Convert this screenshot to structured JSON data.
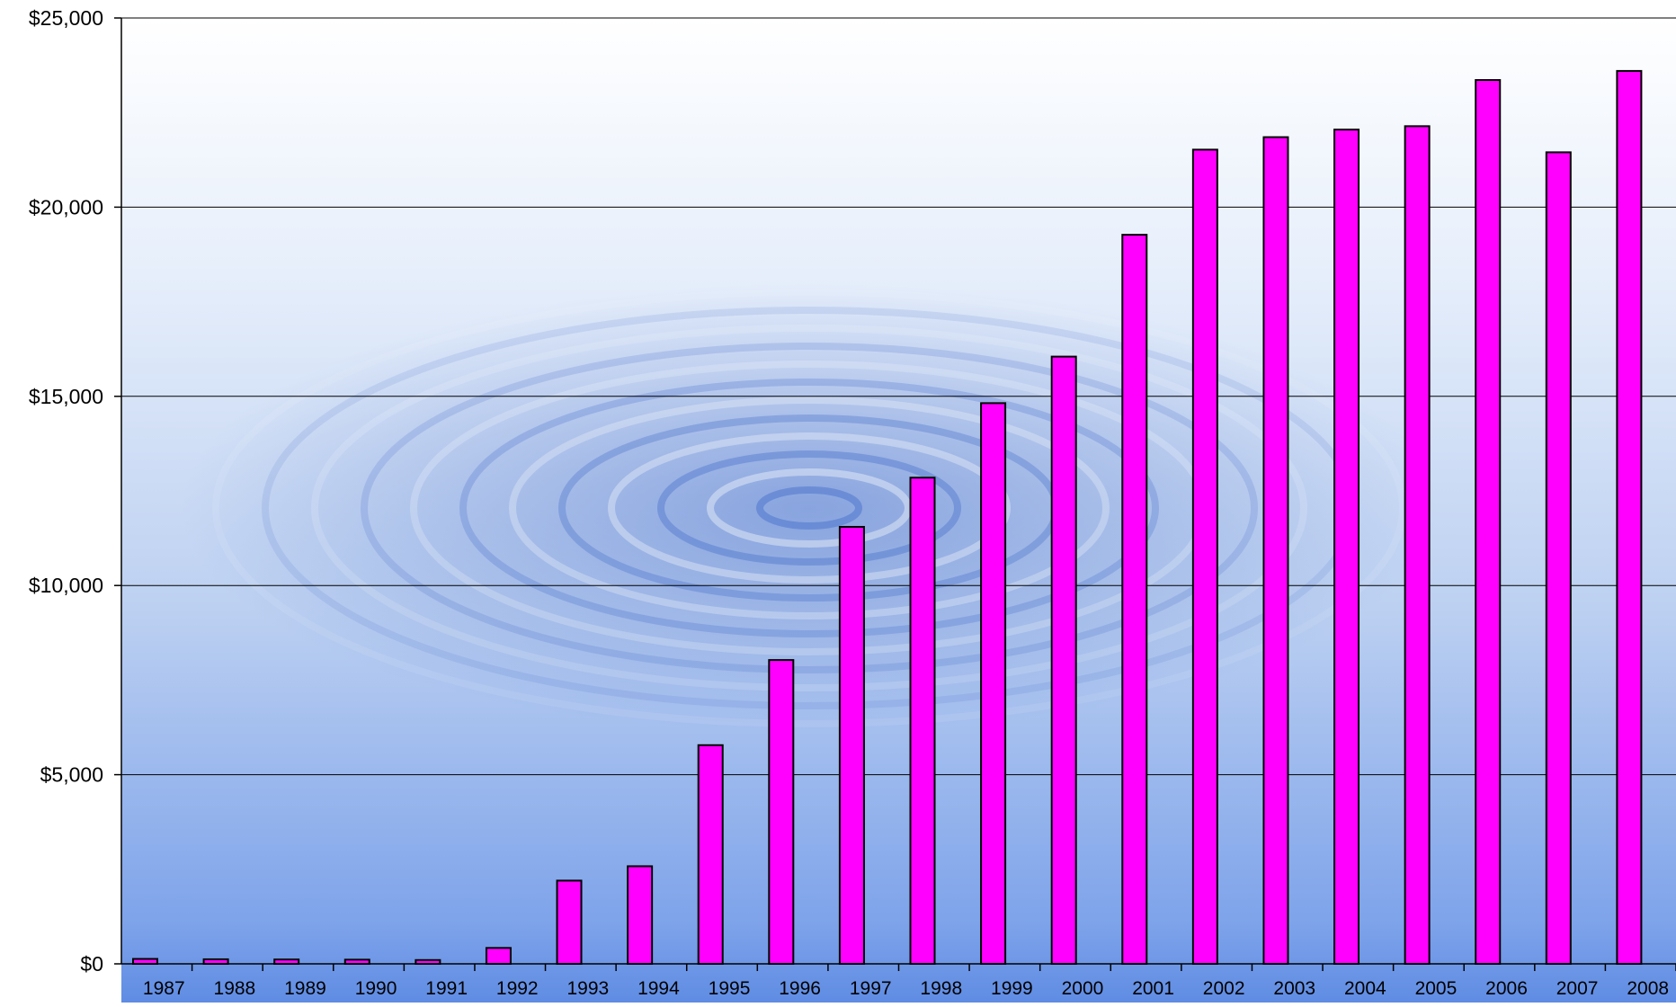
{
  "chart_data": {
    "type": "bar",
    "categories": [
      "1987",
      "1988",
      "1989",
      "1990",
      "1991",
      "1992",
      "1993",
      "1994",
      "1995",
      "1996",
      "1997",
      "1998",
      "1999",
      "2000",
      "2001",
      "2002",
      "2003",
      "2004",
      "2005",
      "2006",
      "2007",
      "2008"
    ],
    "series": [
      {
        "values": [
          130,
          120,
          115,
          110,
          100,
          420,
          2200,
          2580,
          5780,
          8030,
          11550,
          12850,
          14820,
          16050,
          19270,
          21520,
          21850,
          22050,
          22140,
          23360,
          21450,
          23600
        ]
      }
    ],
    "ylim": [
      0,
      25000
    ],
    "y_ticks": [
      0,
      5000,
      10000,
      15000,
      20000,
      25000
    ],
    "y_tick_labels": [
      "$0",
      "$5,000",
      "$10,000",
      "$15,000",
      "$20,000",
      "$25,000"
    ],
    "grid": true,
    "legend": "none",
    "colors": {
      "bar_fill": "#ff00ff",
      "bar_stroke": "#000000",
      "gridline": "#000000",
      "background_top": "#ffffff",
      "background_bottom": "#6f98e8"
    }
  }
}
